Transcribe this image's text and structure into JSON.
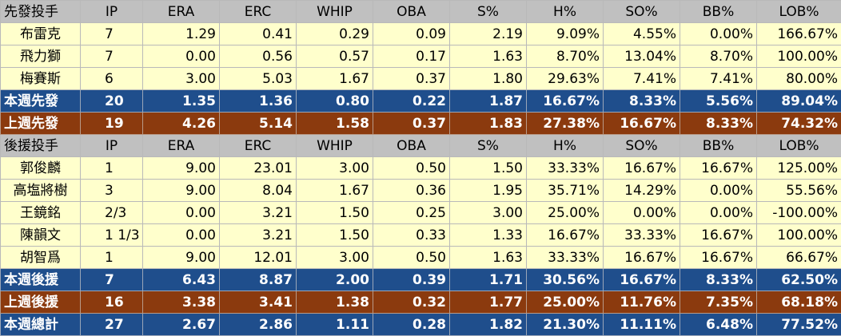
{
  "columns": [
    "IP",
    "ERA",
    "ERC",
    "WHIP",
    "OBA",
    "S%",
    "H%",
    "SO%",
    "BB%",
    "LOB%"
  ],
  "rows": [
    {
      "style": "header",
      "name": "先發投手",
      "values": [
        "IP",
        "ERA",
        "ERC",
        "WHIP",
        "OBA",
        "S%",
        "H%",
        "SO%",
        "BB%",
        "LOB%"
      ]
    },
    {
      "style": "player",
      "name": "布雷克",
      "values": [
        "7",
        "1.29",
        "0.41",
        "0.29",
        "0.09",
        "2.19",
        "9.09%",
        "4.55%",
        "0.00%",
        "166.67%"
      ]
    },
    {
      "style": "player",
      "name": "飛力獅",
      "values": [
        "7",
        "0.00",
        "0.56",
        "0.57",
        "0.17",
        "1.63",
        "8.70%",
        "13.04%",
        "8.70%",
        "100.00%"
      ]
    },
    {
      "style": "player",
      "name": "梅賽斯",
      "values": [
        "6",
        "3.00",
        "5.03",
        "1.67",
        "0.37",
        "1.80",
        "29.63%",
        "7.41%",
        "7.41%",
        "80.00%"
      ]
    },
    {
      "style": "blue",
      "name": "本週先發",
      "values": [
        "20",
        "1.35",
        "1.36",
        "0.80",
        "0.22",
        "1.87",
        "16.67%",
        "8.33%",
        "5.56%",
        "89.04%"
      ]
    },
    {
      "style": "brown",
      "name": "上週先發",
      "values": [
        "19",
        "4.26",
        "5.14",
        "1.58",
        "0.37",
        "1.83",
        "27.38%",
        "16.67%",
        "8.33%",
        "74.32%"
      ]
    },
    {
      "style": "header",
      "name": "後援投手",
      "values": [
        "IP",
        "ERA",
        "ERC",
        "WHIP",
        "OBA",
        "S%",
        "H%",
        "SO%",
        "BB%",
        "LOB%"
      ]
    },
    {
      "style": "player",
      "name": "郭俊麟",
      "values": [
        "1",
        "9.00",
        "23.01",
        "3.00",
        "0.50",
        "1.50",
        "33.33%",
        "16.67%",
        "16.67%",
        "125.00%"
      ]
    },
    {
      "style": "player",
      "name": "高塩將樹",
      "values": [
        "3",
        "9.00",
        "8.04",
        "1.67",
        "0.36",
        "1.95",
        "35.71%",
        "14.29%",
        "0.00%",
        "55.56%"
      ]
    },
    {
      "style": "player",
      "name": "王鏡銘",
      "values": [
        "2/3",
        "0.00",
        "3.21",
        "1.50",
        "0.25",
        "3.00",
        "25.00%",
        "0.00%",
        "0.00%",
        "-100.00%"
      ]
    },
    {
      "style": "player",
      "name": "陳韻文",
      "values": [
        "1 1/3",
        "0.00",
        "3.21",
        "1.50",
        "0.33",
        "1.33",
        "16.67%",
        "33.33%",
        "16.67%",
        "100.00%"
      ]
    },
    {
      "style": "player",
      "name": "胡智爲",
      "values": [
        "1",
        "9.00",
        "12.01",
        "3.00",
        "0.50",
        "1.63",
        "33.33%",
        "16.67%",
        "16.67%",
        "66.67%"
      ]
    },
    {
      "style": "blue",
      "name": "本週後援",
      "values": [
        "7",
        "6.43",
        "8.87",
        "2.00",
        "0.39",
        "1.71",
        "30.56%",
        "16.67%",
        "8.33%",
        "62.50%"
      ]
    },
    {
      "style": "brown",
      "name": "上週後援",
      "values": [
        "16",
        "3.38",
        "3.41",
        "1.38",
        "0.32",
        "1.77",
        "25.00%",
        "11.76%",
        "7.35%",
        "68.18%"
      ]
    },
    {
      "style": "blue",
      "name": "本週總計",
      "values": [
        "27",
        "2.67",
        "2.86",
        "1.11",
        "0.28",
        "1.82",
        "21.30%",
        "11.11%",
        "6.48%",
        "77.52%"
      ]
    }
  ]
}
